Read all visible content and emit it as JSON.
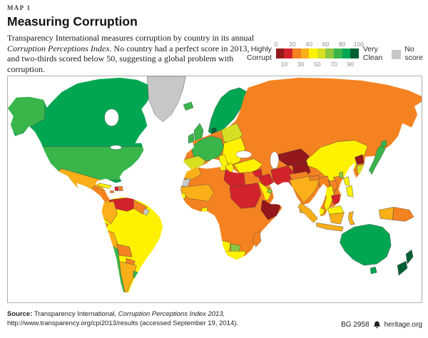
{
  "header": {
    "kicker": "MAP 1",
    "title": "Measuring Corruption",
    "intro_1": "Transparency International measures corruption by country in its annual ",
    "intro_italic": "Corruption Perceptions Index",
    "intro_2": ". No country had a perfect score in 2013, and two-thirds scored below 50, suggesting a global problem with corruption."
  },
  "legend": {
    "left_label_1": "Highly",
    "left_label_2": "Corrupt",
    "right_label_1": "Very",
    "right_label_2": "Clean",
    "no_score_1": "No",
    "no_score_2": "score",
    "ticks_top": [
      "0",
      "20",
      "40",
      "60",
      "80",
      "100"
    ],
    "ticks_bottom": [
      "10",
      "30",
      "50",
      "70",
      "90"
    ],
    "segment_colors": [
      "#9E1B1E",
      "#D2232A",
      "#F58220",
      "#FBAF18",
      "#FFF200",
      "#D7DF23",
      "#8DC63F",
      "#39B54A",
      "#00A651",
      "#006838"
    ],
    "no_score_color": "#CDCDCD"
  },
  "map": {
    "scale_min": 0,
    "scale_max": 100,
    "palette": {
      "band0": "#9E1B1E",
      "band1": "#D2232A",
      "band2": "#F58220",
      "band3": "#FBAF18",
      "band4": "#FFF200",
      "band5": "#D7DF23",
      "band6": "#8DC63F",
      "band7": "#39B54A",
      "band8": "#00A651",
      "band9": "#006838",
      "noscore": "#CDCDCD"
    },
    "regions": {
      "base-north-america": "band8",
      "alaska": "band7",
      "usa": "band7",
      "mexico": "band3",
      "central-america": "band2",
      "costa-rica": "band5",
      "greenland": "noscore",
      "cuba": "band4",
      "haiti": "band1",
      "dominican-republic": "band2",
      "jamaica": "band2",
      "base-south-america": "band4",
      "venezuela": "band1",
      "colombia": "band3",
      "guyanas": "band2",
      "french-guiana": "noscore",
      "ecuador": "band2",
      "peru": "band3",
      "bolivia": "band2",
      "paraguay": "band2",
      "argentina": "band3",
      "chile": "band7",
      "uruguay": "band7",
      "iceland": "band7",
      "united-kingdom": "band7",
      "ireland": "band7",
      "scandinavia": "band8",
      "denmark": "band9",
      "base-eurasia": "band2",
      "west-europe": "band7",
      "iberia": "band5",
      "central-europe": "band5",
      "balkans": "band4",
      "italy": "band4",
      "sicily": "band4",
      "greece": "band4",
      "turkey": "band4",
      "syria": "band1",
      "iraq": "band1",
      "iran": "band1",
      "saudi-arabia": "band4",
      "yemen": "band1",
      "uae": "band6",
      "israel": "band6",
      "turkmenistan-uzbekistan": "band0",
      "afghanistan": "band0",
      "pakistan": "band2",
      "india": "band3",
      "nepal": "band2",
      "bhutan": "band6",
      "bangladesh": "band2",
      "sri-lanka": "band3",
      "china": "band4",
      "north-korea": "band0",
      "south-korea": "band5",
      "japan": "band7",
      "hokkaido": "band7",
      "taiwan": "band6",
      "philippines-north": "band4",
      "philippines-south": "band4",
      "myanmar": "band2",
      "thailand": "band4",
      "laos": "band2",
      "vietnam": "band2",
      "cambodia": "band1",
      "malaysia": "band4",
      "sumatra": "band3",
      "java": "band3",
      "borneo-malaysia": "band4",
      "borneo-indonesia": "band3",
      "sulawesi": "band3",
      "new-guinea-west": "band3",
      "papua-new-guinea": "band2",
      "australia": "band8",
      "tasmania": "band8",
      "new-zealand-north": "band9",
      "new-zealand-south": "band9",
      "base-africa": "band2",
      "morocco": "band3",
      "western-sahara": "noscore",
      "mauritania-mali": "band3",
      "senegal": "band4",
      "guinea-bissau": "band0",
      "ghana": "band4",
      "tunisia": "band4",
      "libya": "band1",
      "chad-sudan": "band1",
      "somalia": "band0",
      "namibia": "band4",
      "botswana": "band6",
      "south-africa": "band4",
      "madagascar": "band2"
    }
  },
  "footer": {
    "source_label": "Source:",
    "source_text": " Transparency International, ",
    "source_italic": "Corruption Perceptions Index 2013,",
    "source_line2": "http://www.transparency.org/cpi2013/results (accessed September 19, 2014).",
    "report_id": "BG 2958",
    "site": "heritage.org"
  }
}
